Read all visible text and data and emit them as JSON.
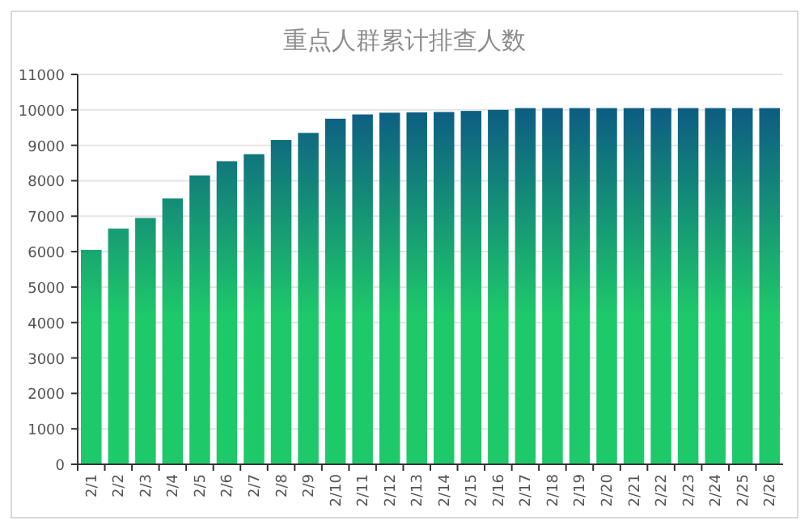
{
  "chart_data": {
    "type": "bar",
    "title": "重点人群累计排查人数",
    "categories": [
      "2/1",
      "2/2",
      "2/3",
      "2/4",
      "2/5",
      "2/6",
      "2/7",
      "2/8",
      "2/9",
      "2/10",
      "2/11",
      "2/12",
      "2/13",
      "2/14",
      "2/15",
      "2/16",
      "2/17",
      "2/18",
      "2/19",
      "2/20",
      "2/21",
      "2/22",
      "2/23",
      "2/24",
      "2/25",
      "2/26"
    ],
    "values": [
      6050,
      6650,
      6950,
      7500,
      8150,
      8550,
      8750,
      9150,
      9350,
      9750,
      9870,
      9920,
      9930,
      9940,
      9970,
      10000,
      10050,
      10050,
      10050,
      10050,
      10050,
      10050,
      10050,
      10050,
      10050,
      10050
    ],
    "color": "#1ec96a",
    "ylim": [
      0,
      11000
    ],
    "yticks": [
      0,
      1000,
      2000,
      3000,
      4000,
      5000,
      6000,
      7000,
      8000,
      9000,
      10000,
      11000
    ],
    "grid": "y"
  }
}
